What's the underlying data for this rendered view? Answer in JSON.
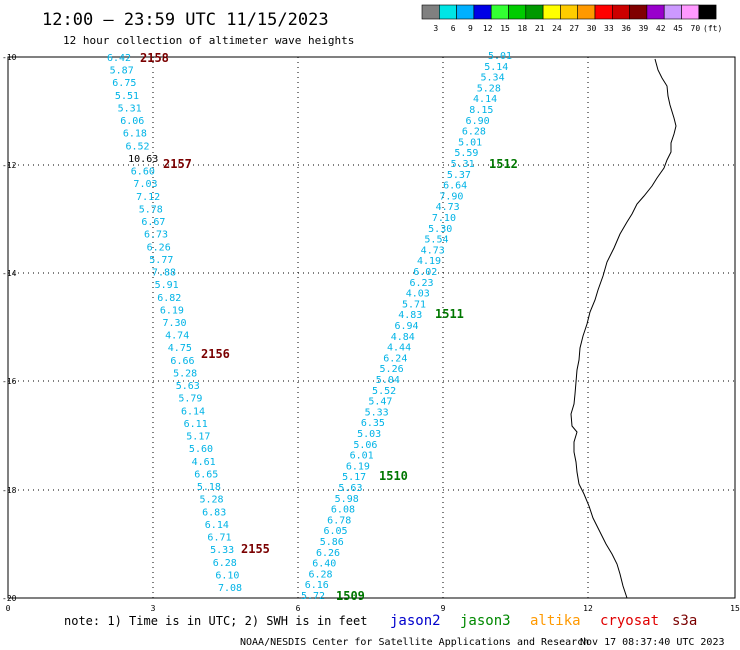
{
  "title": "12:00 – 23:59 UTC 11/15/2023",
  "subtitle": "12 hour collection of altimeter wave heights",
  "legend": {
    "colors": [
      "#808080",
      "#00e5e5",
      "#00b0ff",
      "#0000e6",
      "#33ff33",
      "#00cc00",
      "#009900",
      "#ffff00",
      "#ffcc00",
      "#ff9900",
      "#ff0000",
      "#cc0000",
      "#800000",
      "#9900cc",
      "#cc99ff",
      "#ff99ff",
      "#000000"
    ],
    "labels": [
      "3",
      "6",
      "9",
      "12",
      "15",
      "18",
      "21",
      "24",
      "27",
      "30",
      "33",
      "36",
      "39",
      "42",
      "45",
      "70",
      "(ft)"
    ]
  },
  "axes": {
    "x_ticks": [
      "0",
      "3",
      "6",
      "9",
      "12",
      "15"
    ],
    "y_ticks": [
      "-10",
      "-12",
      "-14",
      "-16",
      "-18",
      "-20"
    ]
  },
  "tracks": [
    {
      "values": [
        "6.42",
        "5.87",
        "6.75",
        "5.51",
        "5.31",
        "6.06",
        "6.18",
        "6.52",
        "10.63",
        "6.60",
        "7.03",
        "7.12",
        "5.78",
        "6.67",
        "6.73",
        "6.26",
        "5.77",
        "7.88",
        "5.91",
        "6.82",
        "6.19",
        "7.30",
        "4.74",
        "4.75",
        "6.66",
        "5.28",
        "5.63",
        "5.79",
        "6.14",
        "6.11",
        "5.17",
        "5.60",
        "4.61",
        "6.65",
        "5.18",
        "5.28",
        "6.83",
        "6.14",
        "6.71",
        "5.33",
        "6.28",
        "6.10",
        "7.08"
      ]
    },
    {
      "values": [
        "5.01",
        "5.14",
        "5.34",
        "5.28",
        "4.14",
        "8.15",
        "6.90",
        "6.28",
        "5.01",
        "5.59",
        "5.31",
        "5.37",
        "6.64",
        "7.90",
        "4.73",
        "7.10",
        "5.30",
        "5.54",
        "4.73",
        "4.19",
        "6.02",
        "6.23",
        "4.03",
        "5.71",
        "4.83",
        "6.94",
        "4.84",
        "4.44",
        "6.24",
        "5.26",
        "5.04",
        "5.52",
        "5.47",
        "5.33",
        "6.35",
        "5.03",
        "5.06",
        "6.01",
        "6.19",
        "5.17",
        "5.63",
        "5.98",
        "6.08",
        "6.78",
        "6.05",
        "5.86",
        "6.26",
        "6.40",
        "6.28",
        "6.16",
        "5.72"
      ]
    }
  ],
  "pass_labels": [
    {
      "text": "2158",
      "color": "#7a0000"
    },
    {
      "text": "2157",
      "color": "#7a0000"
    },
    {
      "text": "2156",
      "color": "#7a0000"
    },
    {
      "text": "2155",
      "color": "#7a0000"
    },
    {
      "text": "1512",
      "color": "#007700"
    },
    {
      "text": "1511",
      "color": "#007700"
    },
    {
      "text": "1510",
      "color": "#007700"
    },
    {
      "text": "1509",
      "color": "#007700"
    }
  ],
  "note": "note: 1) Time is in UTC; 2) SWH is in feet",
  "satellites": [
    {
      "name": "jason2",
      "color": "#0000cc"
    },
    {
      "name": "jason3",
      "color": "#008800"
    },
    {
      "name": "altika",
      "color": "#ff9900"
    },
    {
      "name": "cryosat",
      "color": "#e00000"
    },
    {
      "name": "s3a",
      "color": "#7a0000"
    }
  ],
  "credit": "NOAA/NESDIS Center for Satellite Applications and Research",
  "generated": "Nov 17 08:37:40 UTC 2023",
  "colors": {
    "track_text": "#00b3e6",
    "highlight_text": "#000000",
    "grid": "#000000"
  }
}
